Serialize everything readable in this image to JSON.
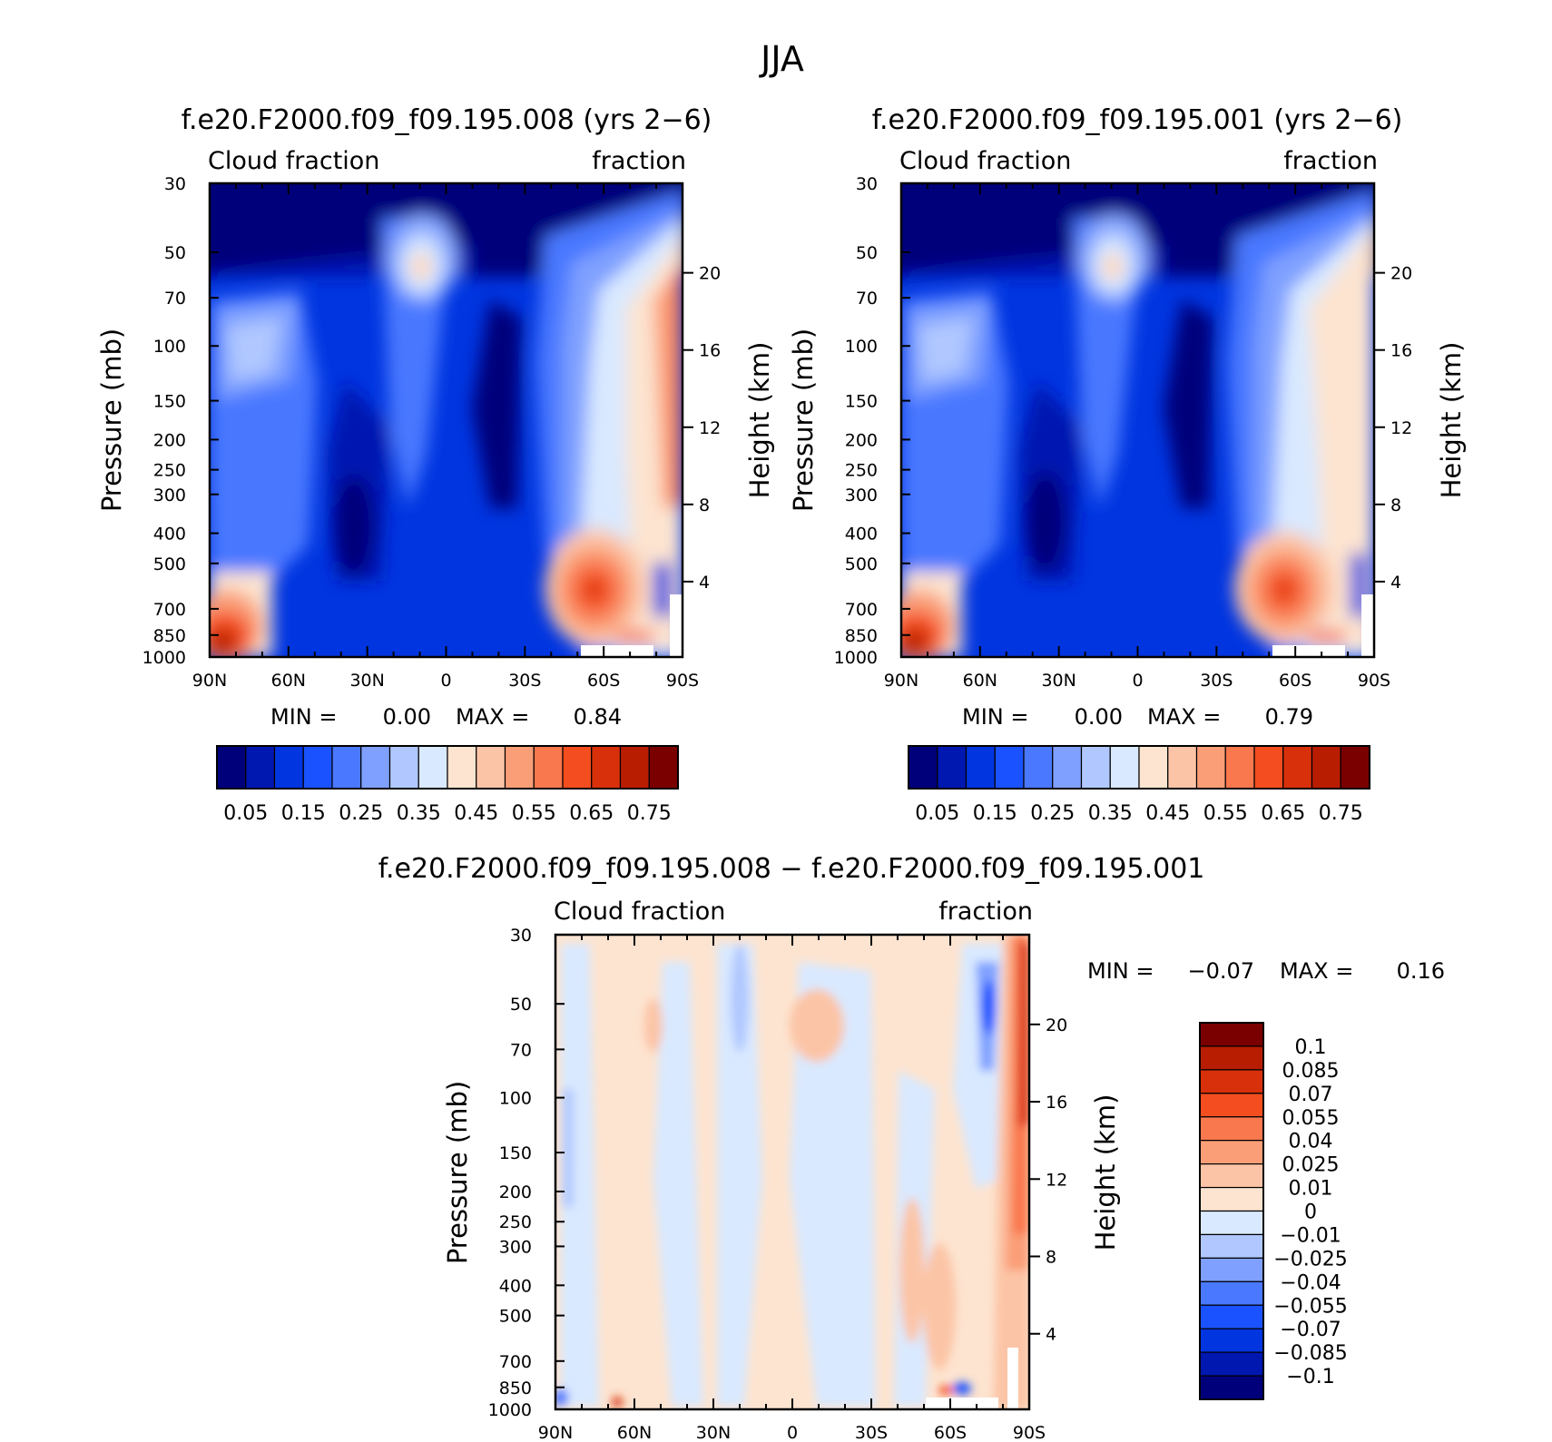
{
  "figure_title": "JJA",
  "chart_data": [
    {
      "type": "heatmap",
      "title": "f.e20.F2000.f09_f09.195.008 (yrs 2−6)",
      "left_label": "Cloud fraction",
      "right_label": "fraction",
      "xlabel": "",
      "ylabel": "Pressure (mb)",
      "y2label": "Height (km)",
      "x_ticks": [
        "90N",
        "60N",
        "30N",
        "0",
        "30S",
        "60S",
        "90S"
      ],
      "y_ticks": [
        "30",
        "50",
        "70",
        "100",
        "150",
        "200",
        "250",
        "300",
        "400",
        "500",
        "700",
        "850",
        "1000"
      ],
      "y2_ticks": [
        "20",
        "16",
        "12",
        "8",
        "4"
      ],
      "ylim": [
        1000,
        30
      ],
      "min_label": "MIN =",
      "min_value": "0.00",
      "max_label": "MAX =",
      "max_value": "0.84",
      "colorbar_levels": [
        "0.05",
        "0.15",
        "0.25",
        "0.35",
        "0.45",
        "0.55",
        "0.65",
        "0.75"
      ],
      "colorbar_colors": [
        "#00007a",
        "#0017b0",
        "#0035e0",
        "#1b52ff",
        "#4a78ff",
        "#7fa0ff",
        "#b0c8ff",
        "#d9e9ff",
        "#fde4d0",
        "#fcc4a6",
        "#fa9e77",
        "#f9784e",
        "#f44d1f",
        "#d8300a",
        "#b81d02",
        "#7a0000"
      ]
    },
    {
      "type": "heatmap",
      "title": "f.e20.F2000.f09_f09.195.001 (yrs 2−6)",
      "left_label": "Cloud fraction",
      "right_label": "fraction",
      "xlabel": "",
      "ylabel": "Pressure (mb)",
      "y2label": "Height (km)",
      "x_ticks": [
        "90N",
        "60N",
        "30N",
        "0",
        "30S",
        "60S",
        "90S"
      ],
      "y_ticks": [
        "30",
        "50",
        "70",
        "100",
        "150",
        "200",
        "250",
        "300",
        "400",
        "500",
        "700",
        "850",
        "1000"
      ],
      "y2_ticks": [
        "20",
        "16",
        "12",
        "8",
        "4"
      ],
      "ylim": [
        1000,
        30
      ],
      "min_label": "MIN =",
      "min_value": "0.00",
      "max_label": "MAX =",
      "max_value": "0.79",
      "colorbar_levels": [
        "0.05",
        "0.15",
        "0.25",
        "0.35",
        "0.45",
        "0.55",
        "0.65",
        "0.75"
      ],
      "colorbar_colors": [
        "#00007a",
        "#0017b0",
        "#0035e0",
        "#1b52ff",
        "#4a78ff",
        "#7fa0ff",
        "#b0c8ff",
        "#d9e9ff",
        "#fde4d0",
        "#fcc4a6",
        "#fa9e77",
        "#f9784e",
        "#f44d1f",
        "#d8300a",
        "#b81d02",
        "#7a0000"
      ]
    },
    {
      "type": "heatmap",
      "title": "f.e20.F2000.f09_f09.195.008 − f.e20.F2000.f09_f09.195.001",
      "left_label": "Cloud fraction",
      "right_label": "fraction",
      "xlabel": "",
      "ylabel": "Pressure (mb)",
      "y2label": "Height (km)",
      "x_ticks": [
        "90N",
        "60N",
        "30N",
        "0",
        "30S",
        "60S",
        "90S"
      ],
      "y_ticks": [
        "30",
        "50",
        "70",
        "100",
        "150",
        "200",
        "250",
        "300",
        "400",
        "500",
        "700",
        "850",
        "1000"
      ],
      "y2_ticks": [
        "20",
        "16",
        "12",
        "8",
        "4"
      ],
      "ylim": [
        1000,
        30
      ],
      "min_label": "MIN =",
      "min_value": "−0.07",
      "max_label": "MAX =",
      "max_value": "0.16",
      "colorbar_levels": [
        "0.1",
        "0.085",
        "0.07",
        "0.055",
        "0.04",
        "0.025",
        "0.01",
        "0",
        "−0.01",
        "−0.025",
        "−0.04",
        "−0.055",
        "−0.07",
        "−0.085",
        "−0.1"
      ],
      "colorbar_colors": [
        "#7a0000",
        "#b81d02",
        "#d8300a",
        "#f44d1f",
        "#f9784e",
        "#fa9e77",
        "#fcc4a6",
        "#fde4d0",
        "#d9e9ff",
        "#b0c8ff",
        "#7fa0ff",
        "#4a78ff",
        "#1b52ff",
        "#0035e0",
        "#0017b0",
        "#00007a"
      ]
    }
  ]
}
